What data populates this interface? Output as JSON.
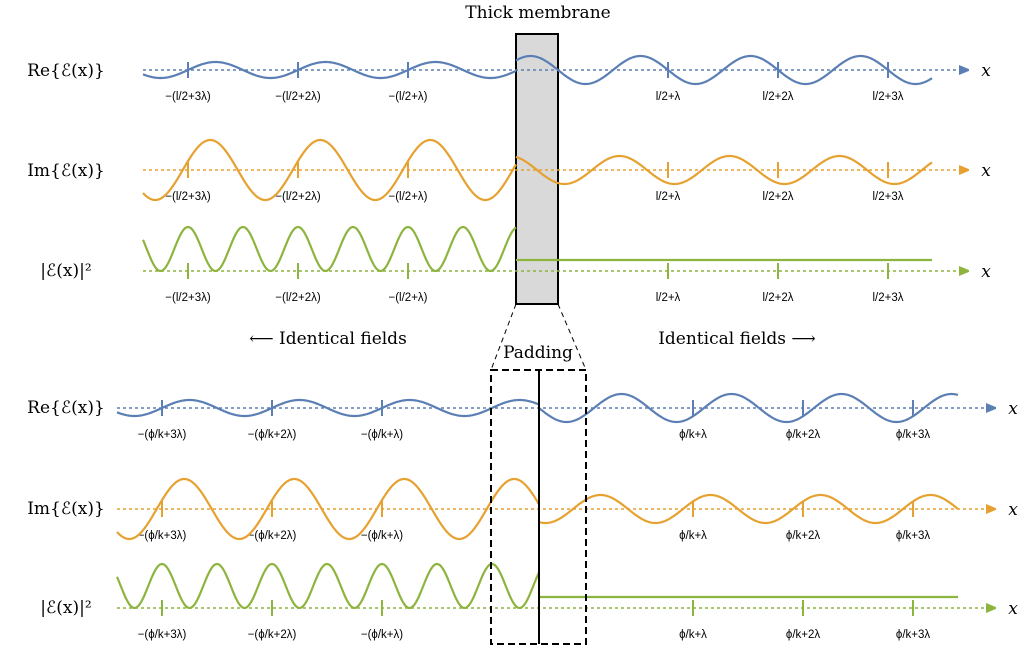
{
  "title": "Thick membrane",
  "padding_label": "Padding",
  "left_annotation": "⟵ Identical fields",
  "right_annotation": "Identical fields ⟶",
  "axis_symbol": "x",
  "colors": {
    "re": "#5b7fb5",
    "im": "#e6a130",
    "abs": "#8db43e",
    "membrane_fill": "#d9d9d9"
  },
  "top": {
    "rows": [
      {
        "id": "re",
        "label": "Re{ℰ(x)}"
      },
      {
        "id": "im",
        "label": "Im{ℰ(x)}"
      },
      {
        "id": "abs",
        "label": "|ℰ(x)|²"
      }
    ],
    "left_ticks": [
      "−(l/2+3λ)",
      "−(l/2+2λ)",
      "−(l/2+λ)"
    ],
    "right_ticks": [
      "l/2+λ",
      "l/2+2λ",
      "l/2+3λ"
    ]
  },
  "bottom": {
    "rows": [
      {
        "id": "re",
        "label": "Re{ℰ(x)}"
      },
      {
        "id": "im",
        "label": "Im{ℰ(x)}"
      },
      {
        "id": "abs",
        "label": "|ℰ(x)|²"
      }
    ],
    "left_ticks": [
      "−(ϕ/k+3λ)",
      "−(ϕ/k+2λ)",
      "−(ϕ/k+λ)"
    ],
    "right_ticks": [
      "ϕ/k+λ",
      "ϕ/k+2λ",
      "ϕ/k+3λ"
    ]
  }
}
